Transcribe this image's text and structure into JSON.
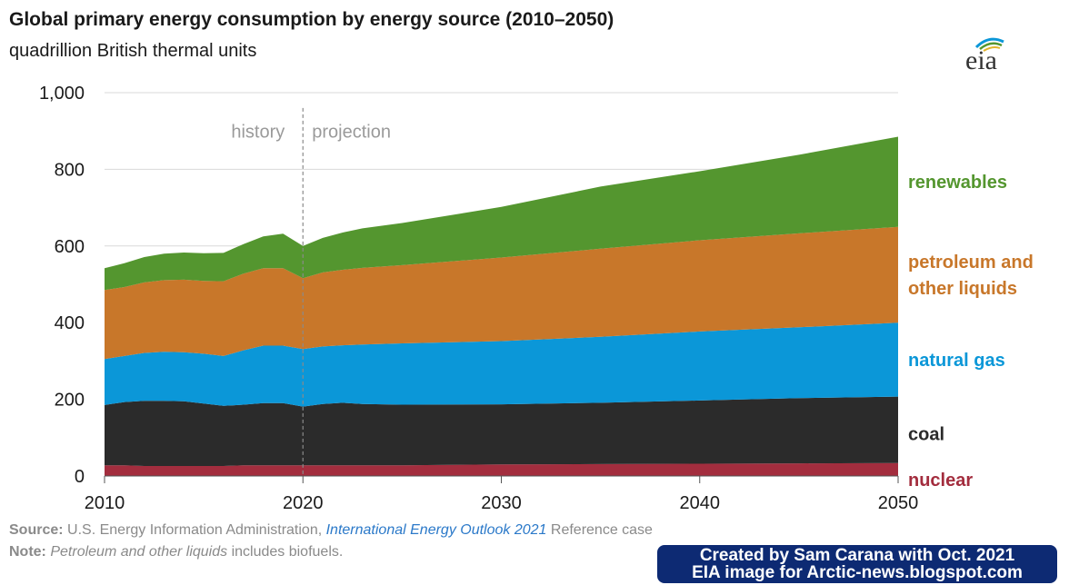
{
  "chart_data": {
    "type": "area",
    "stacked": true,
    "title": "Global primary energy consumption by energy source (2010–2050)",
    "subtitle": "quadrillion British thermal units",
    "xlim": [
      2010,
      2050
    ],
    "ylim": [
      0,
      1000
    ],
    "x_ticks": [
      "2010",
      "2020",
      "2030",
      "2040",
      "2050"
    ],
    "y_ticks": [
      "0",
      "200",
      "400",
      "600",
      "800",
      "1,000"
    ],
    "grid": "horizontal",
    "history_label": "history",
    "projection_label": "projection",
    "divider_year": 2020,
    "x": [
      2010,
      2011,
      2012,
      2013,
      2014,
      2015,
      2016,
      2017,
      2018,
      2019,
      2020,
      2021,
      2022,
      2023,
      2025,
      2030,
      2035,
      2040,
      2045,
      2050
    ],
    "series": [
      {
        "name": "nuclear",
        "color": "#a32d3e",
        "values": [
          28,
          28,
          26,
          26,
          26,
          26,
          26,
          28,
          28,
          28,
          28,
          28,
          28,
          28,
          28,
          30,
          31,
          32,
          33,
          34
        ]
      },
      {
        "name": "coal",
        "color": "#2b2b2b",
        "values": [
          157,
          165,
          170,
          170,
          169,
          163,
          157,
          158,
          162,
          162,
          153,
          160,
          163,
          160,
          158,
          157,
          160,
          165,
          170,
          173
        ]
      },
      {
        "name": "natural gas",
        "color": "#0b97d8",
        "values": [
          120,
          120,
          125,
          128,
          128,
          130,
          130,
          142,
          150,
          150,
          150,
          150,
          150,
          155,
          160,
          165,
          172,
          180,
          185,
          193
        ]
      },
      {
        "name": "petroleum and other liquids",
        "color": "#c8772a",
        "values": [
          180,
          180,
          184,
          187,
          189,
          190,
          195,
          200,
          202,
          202,
          185,
          193,
          197,
          200,
          204,
          218,
          230,
          238,
          245,
          250
        ]
      },
      {
        "name": "renewables",
        "color": "#54962f",
        "values": [
          57,
          62,
          66,
          69,
          71,
          72,
          74,
          77,
          83,
          90,
          84,
          90,
          97,
          103,
          110,
          132,
          162,
          180,
          205,
          235
        ]
      }
    ],
    "series_labels": [
      {
        "lines": [
          "renewables"
        ],
        "color": "#54962f"
      },
      {
        "lines": [
          "petroleum and",
          "other liquids"
        ],
        "color": "#c8772a"
      },
      {
        "lines": [
          "natural gas"
        ],
        "color": "#0b97d8"
      },
      {
        "lines": [
          "coal"
        ],
        "color": "#2b2b2b"
      },
      {
        "lines": [
          "nuclear"
        ],
        "color": "#a32d3e"
      }
    ]
  },
  "header": {
    "title": "Global primary energy consumption by energy source (2010–2050)",
    "subtitle": "quadrillion British thermal units",
    "logo_text": "eia"
  },
  "footer": {
    "source_label": "Source:",
    "source_text": "U.S. Energy Information Administration,",
    "source_link": "International Energy Outlook 2021",
    "source_suffix": "Reference case",
    "note_label": "Note:",
    "note_italic": "Petroleum and other liquids",
    "note_text": "includes biofuels.",
    "credit_line1": "Created by Sam Carana with Oct. 2021",
    "credit_line2": "EIA image for Arctic-news.blogspot.com"
  }
}
